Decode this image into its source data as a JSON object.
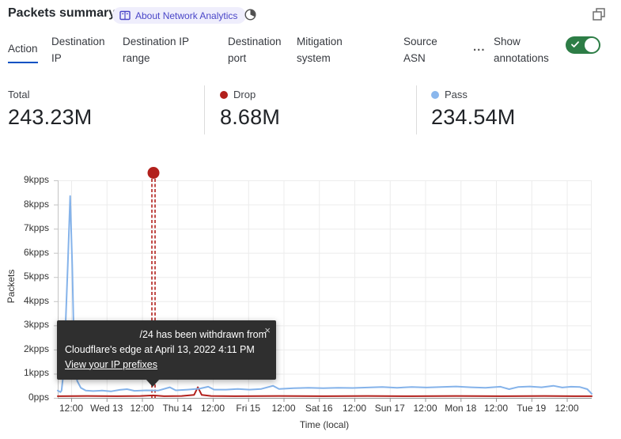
{
  "header": {
    "title": "Packets summary",
    "about_badge": "About Network Analytics"
  },
  "tabs": {
    "items": [
      {
        "label": "Action",
        "active": true
      },
      {
        "label": "Destination IP",
        "active": false
      },
      {
        "label": "Destination IP range",
        "active": false
      },
      {
        "label": "Destination port",
        "active": false
      },
      {
        "label": "Mitigation system",
        "active": false
      },
      {
        "label": "Source ASN",
        "active": false
      }
    ],
    "more_label": "...",
    "annotations_toggle": {
      "label": "Show annotations",
      "state": "on"
    }
  },
  "stats": {
    "total": {
      "label": "Total",
      "value": "243.23M"
    },
    "drop": {
      "label": "Drop",
      "value": "8.68M",
      "dot_color": "#b2201c"
    },
    "pass": {
      "label": "Pass",
      "value": "234.54M",
      "dot_color": "#8ab7ed"
    }
  },
  "tooltip": {
    "line1": "/24 has been withdrawn from",
    "line2": "Cloudflare's edge at April 13, 2022 4:11 PM",
    "link": "View your IP prefixes",
    "close": "×"
  },
  "chart_data": {
    "type": "line",
    "xlabel": "Time (local)",
    "ylabel": "Packets",
    "ylim_kpps": [
      0,
      9
    ],
    "y_tick_labels": [
      "0pps",
      "1kpps",
      "2kpps",
      "3kpps",
      "4kpps",
      "5kpps",
      "6kpps",
      "7kpps",
      "8kpps",
      "9kpps"
    ],
    "x_tick_labels": [
      "12:00",
      "Wed 13",
      "12:00",
      "Thu 14",
      "12:00",
      "Fri 15",
      "12:00",
      "Sat 16",
      "12:00",
      "Sun 17",
      "12:00",
      "Mon 18",
      "12:00",
      "Tue 19",
      "12:00"
    ],
    "x_domain_hours": [
      0,
      181
    ],
    "first_tick_hour": 4.56,
    "tick_interval_hours": 12,
    "grid": true,
    "legend_position": "stats-row-above-chart",
    "annotation": {
      "hour": 32.45,
      "color": "#b2201c",
      "style": "double-dashed-vertical-with-dot"
    },
    "series": [
      {
        "name": "Pass",
        "color": "#85b3ea",
        "units": "kpps",
        "points": [
          [
            0,
            0.3
          ],
          [
            0.9,
            0.24
          ],
          [
            1.3,
            0.3
          ],
          [
            2.1,
            1.2
          ],
          [
            3.4,
            5.5
          ],
          [
            4.2,
            8.35
          ],
          [
            4.9,
            5.5
          ],
          [
            5.6,
            1.6
          ],
          [
            6.6,
            0.7
          ],
          [
            7.8,
            0.42
          ],
          [
            9.5,
            0.3
          ],
          [
            12,
            0.28
          ],
          [
            15,
            0.3
          ],
          [
            18,
            0.27
          ],
          [
            21,
            0.33
          ],
          [
            23.5,
            0.36
          ],
          [
            26,
            0.29
          ],
          [
            30,
            0.31
          ],
          [
            34,
            0.3
          ],
          [
            38,
            0.44
          ],
          [
            40,
            0.31
          ],
          [
            44,
            0.34
          ],
          [
            48,
            0.38
          ],
          [
            51,
            0.46
          ],
          [
            53,
            0.34
          ],
          [
            57,
            0.34
          ],
          [
            61,
            0.37
          ],
          [
            65,
            0.34
          ],
          [
            69,
            0.37
          ],
          [
            73,
            0.5
          ],
          [
            75,
            0.37
          ],
          [
            80,
            0.4
          ],
          [
            85,
            0.42
          ],
          [
            90,
            0.4
          ],
          [
            95,
            0.42
          ],
          [
            100,
            0.41
          ],
          [
            105,
            0.43
          ],
          [
            110,
            0.45
          ],
          [
            115,
            0.42
          ],
          [
            120,
            0.45
          ],
          [
            125,
            0.43
          ],
          [
            130,
            0.45
          ],
          [
            135,
            0.47
          ],
          [
            140,
            0.44
          ],
          [
            145,
            0.42
          ],
          [
            150,
            0.46
          ],
          [
            153,
            0.36
          ],
          [
            156,
            0.45
          ],
          [
            160,
            0.47
          ],
          [
            164,
            0.44
          ],
          [
            168,
            0.5
          ],
          [
            171,
            0.43
          ],
          [
            174,
            0.46
          ],
          [
            177,
            0.45
          ],
          [
            179.5,
            0.36
          ],
          [
            181,
            0.17
          ]
        ]
      },
      {
        "name": "Drop",
        "color": "#b2201c",
        "units": "kpps",
        "points": [
          [
            0,
            0.07
          ],
          [
            10,
            0.08
          ],
          [
            20,
            0.07
          ],
          [
            28,
            0.08
          ],
          [
            32.4,
            0.1
          ],
          [
            36,
            0.07
          ],
          [
            42,
            0.08
          ],
          [
            46.2,
            0.12
          ],
          [
            47.5,
            0.44
          ],
          [
            48.8,
            0.12
          ],
          [
            52,
            0.08
          ],
          [
            60,
            0.07
          ],
          [
            75,
            0.08
          ],
          [
            90,
            0.07
          ],
          [
            105,
            0.08
          ],
          [
            120,
            0.07
          ],
          [
            135,
            0.08
          ],
          [
            150,
            0.07
          ],
          [
            165,
            0.08
          ],
          [
            175,
            0.07
          ],
          [
            181,
            0.07
          ]
        ]
      }
    ]
  },
  "colors": {
    "accent_blue": "#0051c3",
    "badge_bg": "#efeefc",
    "badge_text": "#4a46c8",
    "toggle_green": "#2d7d46",
    "pass_blue": "#85b3ea",
    "drop_red": "#b2201c",
    "grid": "#ececec",
    "axis": "#949494",
    "tooltip_bg": "#2f2f2f"
  }
}
